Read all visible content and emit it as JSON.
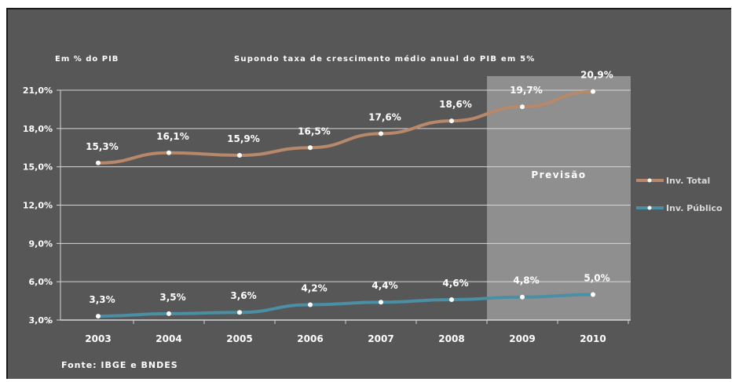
{
  "chart_data": {
    "type": "line",
    "unit_label": "Em % do PIB",
    "title": "Supondo taxa de crescimento médio anual do PIB em 5%",
    "source": "Fonte: IBGE e BNDES",
    "forecast_label": "Previsão",
    "forecast_from": "2009",
    "categories": [
      "2003",
      "2004",
      "2005",
      "2006",
      "2007",
      "2008",
      "2009",
      "2010"
    ],
    "y_ticks": [
      "3,0%",
      "6,0%",
      "9,0%",
      "12,0%",
      "15,0%",
      "18,0%",
      "21,0%"
    ],
    "ylim": [
      3,
      21
    ],
    "grid": true,
    "legend_position": "right",
    "series": [
      {
        "name": "Inv. Total",
        "color": "#b7886a",
        "values": [
          15.3,
          16.1,
          15.9,
          16.5,
          17.6,
          18.6,
          19.7,
          20.9
        ],
        "labels": [
          "15,3%",
          "16,1%",
          "15,9%",
          "16,5%",
          "17,6%",
          "18,6%",
          "19,7%",
          "20,9%"
        ]
      },
      {
        "name": "Inv. Público",
        "color": "#4a8fa4",
        "values": [
          3.3,
          3.5,
          3.6,
          4.2,
          4.4,
          4.6,
          4.8,
          5.0
        ],
        "labels": [
          "3,3%",
          "3,5%",
          "3,6%",
          "4,2%",
          "4,4%",
          "4,6%",
          "4,8%",
          "5,0%"
        ]
      }
    ]
  }
}
